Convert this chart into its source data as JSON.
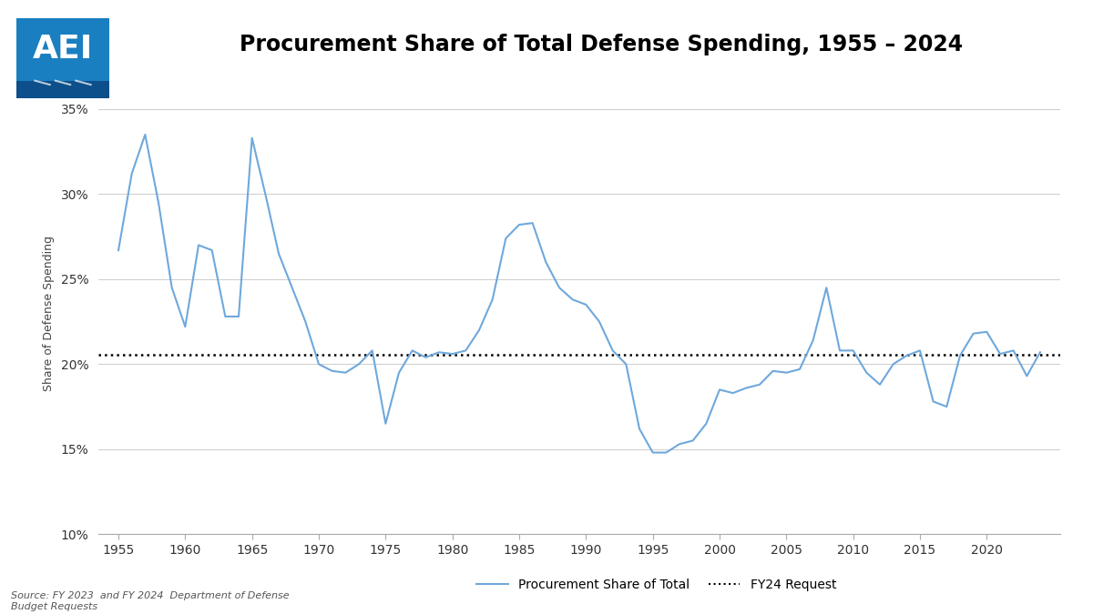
{
  "title": "Procurement Share of Total Defense Spending, 1955 – 2024",
  "ylabel": "Share of Defense Spending",
  "xlabel": "",
  "line_color": "#6fa8dc",
  "dotted_line_color": "#000000",
  "dotted_line_value": 0.2055,
  "background_color": "#ffffff",
  "grid_color": "#d0d0d0",
  "years": [
    1955,
    1956,
    1957,
    1958,
    1959,
    1960,
    1961,
    1962,
    1963,
    1964,
    1965,
    1966,
    1967,
    1968,
    1969,
    1970,
    1971,
    1972,
    1973,
    1974,
    1975,
    1976,
    1977,
    1978,
    1979,
    1980,
    1981,
    1982,
    1983,
    1984,
    1985,
    1986,
    1987,
    1988,
    1989,
    1990,
    1991,
    1992,
    1993,
    1994,
    1995,
    1996,
    1997,
    1998,
    1999,
    2000,
    2001,
    2002,
    2003,
    2004,
    2005,
    2006,
    2007,
    2008,
    2009,
    2010,
    2011,
    2012,
    2013,
    2014,
    2015,
    2016,
    2017,
    2018,
    2019,
    2020,
    2021,
    2022,
    2023,
    2024
  ],
  "values": [
    0.267,
    0.312,
    0.335,
    0.295,
    0.245,
    0.222,
    0.27,
    0.267,
    0.228,
    0.228,
    0.333,
    0.3,
    0.265,
    0.245,
    0.225,
    0.2,
    0.196,
    0.195,
    0.2,
    0.208,
    0.165,
    0.195,
    0.208,
    0.204,
    0.207,
    0.206,
    0.208,
    0.22,
    0.238,
    0.274,
    0.282,
    0.283,
    0.26,
    0.245,
    0.238,
    0.235,
    0.225,
    0.208,
    0.2,
    0.162,
    0.148,
    0.148,
    0.153,
    0.155,
    0.165,
    0.185,
    0.183,
    0.186,
    0.188,
    0.196,
    0.195,
    0.197,
    0.214,
    0.245,
    0.208,
    0.208,
    0.195,
    0.188,
    0.2,
    0.205,
    0.208,
    0.178,
    0.175,
    0.205,
    0.218,
    0.219,
    0.206,
    0.208,
    0.193,
    0.207
  ],
  "ylim": [
    0.1,
    0.36
  ],
  "yticks": [
    0.1,
    0.15,
    0.2,
    0.25,
    0.3,
    0.35
  ],
  "ytick_labels": [
    "10%",
    "15%",
    "20%",
    "25%",
    "30%",
    "35%"
  ],
  "xticks": [
    1955,
    1960,
    1965,
    1970,
    1975,
    1980,
    1985,
    1990,
    1995,
    2000,
    2005,
    2010,
    2015,
    2020
  ],
  "legend_line_label": "Procurement Share of Total",
  "legend_dot_label": "FY24 Request",
  "source_text": "Source: FY 2023  and FY 2024  Department of Defense\nBudget Requests",
  "title_fontsize": 17,
  "axis_label_fontsize": 9,
  "tick_fontsize": 10,
  "source_fontsize": 8,
  "legend_fontsize": 10,
  "logo_blue": "#1a7fc1",
  "logo_dark": "#1360a0",
  "logo_stripe": "#0d4f8a"
}
